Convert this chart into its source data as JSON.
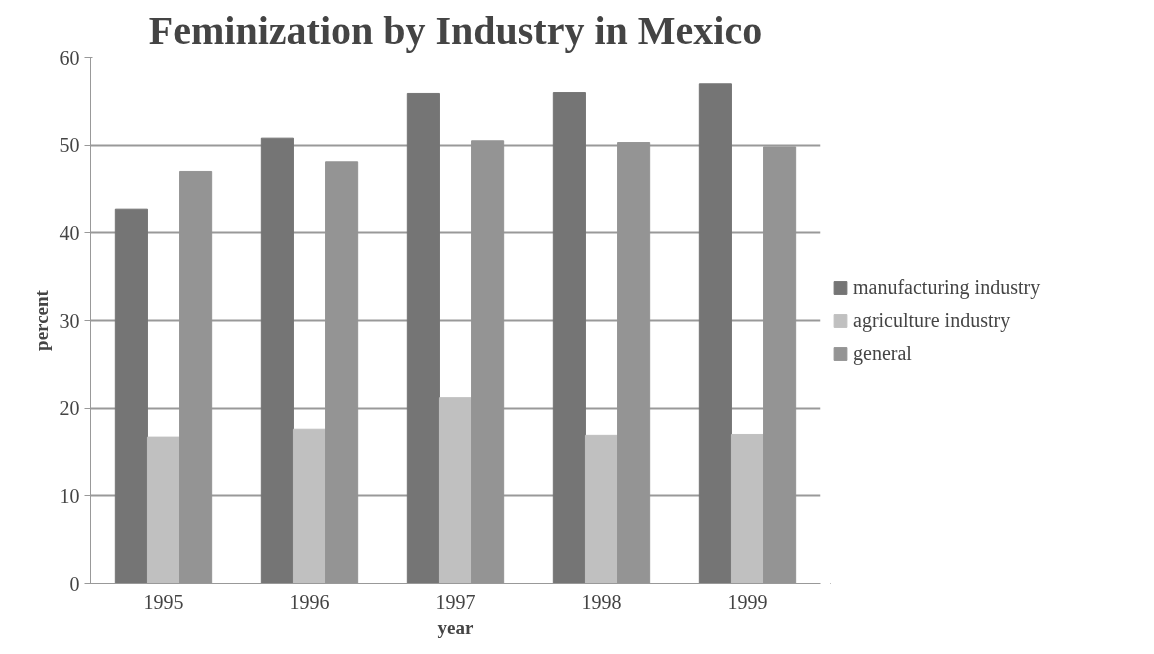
{
  "chart_data": {
    "type": "bar",
    "title": "Feminization by Industry in Mexico",
    "xlabel": "year",
    "ylabel": "percent",
    "categories": [
      "1995",
      "1996",
      "1997",
      "1998",
      "1999"
    ],
    "series": [
      {
        "name": "manufacturing industry",
        "color": "#757575",
        "values": [
          42.7,
          50.8,
          55.9,
          56.0,
          57.0
        ]
      },
      {
        "name": "agriculture industry",
        "color": "#c0c0c0",
        "values": [
          16.7,
          17.6,
          21.2,
          16.9,
          17.0
        ]
      },
      {
        "name": "general",
        "color": "#949494",
        "values": [
          47.0,
          48.1,
          50.5,
          50.3,
          49.8
        ]
      }
    ],
    "ylim": [
      0,
      60
    ],
    "yticks": [
      0,
      10,
      20,
      30,
      40,
      50,
      60
    ],
    "grid": "y",
    "legend": "right"
  }
}
